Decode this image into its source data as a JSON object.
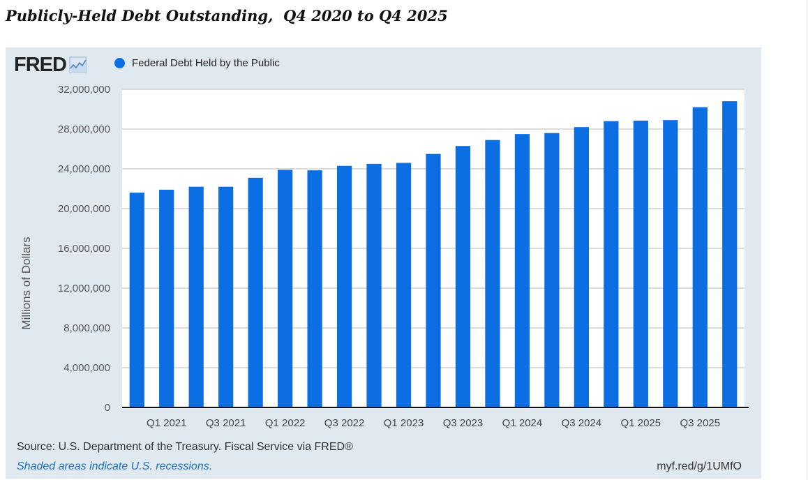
{
  "page": {
    "title": "Publicly-Held Debt Outstanding,  Q4 2020 to Q4 2025"
  },
  "panel": {
    "logo_text": "FRED",
    "logo_icon": "line-chart-icon",
    "source": "Source: U.S. Department of the Treasury. Fiscal Service via FRED®",
    "note": "Shaded areas indicate U.S. recessions.",
    "short_url": "myf.red/g/1UMfO",
    "background_color": "#e1e9f0"
  },
  "chart_data": {
    "type": "bar",
    "ylabel": "Millions of Dollars",
    "ylim": [
      0,
      32000000
    ],
    "yticks": [
      0,
      4000000,
      8000000,
      12000000,
      16000000,
      20000000,
      24000000,
      28000000,
      32000000
    ],
    "ytick_labels": [
      "0",
      "4,000,000",
      "8,000,000",
      "12,000,000",
      "16,000,000",
      "20,000,000",
      "24,000,000",
      "28,000,000",
      "32,000,000"
    ],
    "grid": true,
    "legend_position": "top-left",
    "bar_color": "#0b6fe3",
    "categories": [
      "Q4 2020",
      "Q1 2021",
      "Q2 2021",
      "Q3 2021",
      "Q4 2021",
      "Q1 2022",
      "Q2 2022",
      "Q3 2022",
      "Q4 2022",
      "Q1 2023",
      "Q2 2023",
      "Q3 2023",
      "Q4 2023",
      "Q1 2024",
      "Q2 2024",
      "Q3 2024",
      "Q4 2024",
      "Q1 2025",
      "Q2 2025",
      "Q3 2025",
      "Q4 2025"
    ],
    "xtick_labels": [
      {
        "index": 1,
        "label": "Q1 2021"
      },
      {
        "index": 3,
        "label": "Q3 2021"
      },
      {
        "index": 5,
        "label": "Q1 2022"
      },
      {
        "index": 7,
        "label": "Q3 2022"
      },
      {
        "index": 9,
        "label": "Q1 2023"
      },
      {
        "index": 11,
        "label": "Q3 2023"
      },
      {
        "index": 13,
        "label": "Q1 2024"
      },
      {
        "index": 15,
        "label": "Q3 2024"
      },
      {
        "index": 17,
        "label": "Q1 2025"
      },
      {
        "index": 19,
        "label": "Q3 2025"
      }
    ],
    "series": [
      {
        "name": "Federal Debt Held by the Public",
        "values": [
          21600000,
          21900000,
          22200000,
          22200000,
          23100000,
          23900000,
          23850000,
          24300000,
          24500000,
          24600000,
          25500000,
          26300000,
          26900000,
          27500000,
          27600000,
          28200000,
          28800000,
          28850000,
          28900000,
          30200000,
          30800000
        ]
      }
    ]
  }
}
